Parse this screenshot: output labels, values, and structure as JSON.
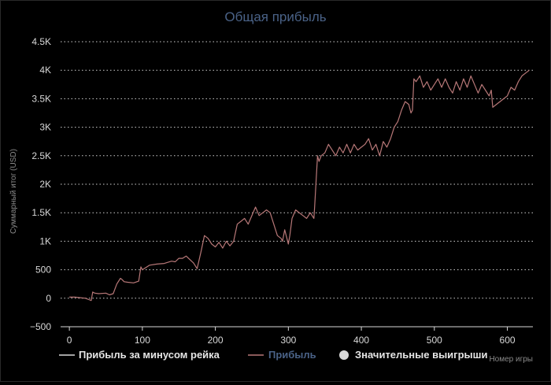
{
  "chart_data": {
    "type": "line",
    "title": "Общая прибыль",
    "xlabel": "Номер игры",
    "ylabel": "Суммарный итог (USD)",
    "xlim": [
      -12,
      635
    ],
    "ylim": [
      -500,
      4500
    ],
    "x_ticks": [
      0,
      100,
      200,
      300,
      400,
      500,
      600
    ],
    "x_tick_labels": [
      "0",
      "100",
      "200",
      "300",
      "400",
      "500",
      "600"
    ],
    "y_ticks": [
      -500,
      0,
      500,
      1000,
      1500,
      2000,
      2500,
      3000,
      3500,
      4000,
      4500
    ],
    "y_tick_labels": [
      "−500",
      "0",
      "500",
      "1K",
      "1.5K",
      "2K",
      "2.5K",
      "3K",
      "3.5K",
      "4K",
      "4.5K"
    ],
    "grid": "horizontal-dotted",
    "legend_position": "bottom",
    "legend": [
      {
        "label": "Прибыль за минусом рейка",
        "color": "#d8d8d8",
        "kind": "line"
      },
      {
        "label": "Прибыль",
        "color": "#b87878",
        "kind": "line"
      },
      {
        "label": "Значительные выигрыши",
        "color": "#d8d8d8",
        "kind": "marker"
      }
    ],
    "series": [
      {
        "name": "Прибыль",
        "color": "#b87878",
        "x": [
          0,
          8,
          15,
          22,
          28,
          30,
          32,
          33,
          35,
          40,
          50,
          55,
          60,
          65,
          70,
          72,
          75,
          80,
          88,
          95,
          98,
          100,
          110,
          120,
          130,
          140,
          145,
          150,
          155,
          160,
          165,
          170,
          175,
          180,
          185,
          190,
          195,
          200,
          205,
          210,
          215,
          220,
          225,
          230,
          235,
          240,
          245,
          250,
          255,
          260,
          265,
          270,
          275,
          280,
          285,
          290,
          292,
          295,
          298,
          300,
          302,
          305,
          310,
          315,
          320,
          325,
          330,
          335,
          336,
          340,
          342,
          345,
          350,
          355,
          360,
          365,
          370,
          375,
          380,
          385,
          390,
          395,
          400,
          405,
          410,
          415,
          420,
          425,
          430,
          435,
          440,
          445,
          450,
          455,
          460,
          465,
          468,
          470,
          472,
          475,
          480,
          485,
          490,
          495,
          500,
          505,
          510,
          515,
          520,
          525,
          530,
          535,
          540,
          545,
          550,
          555,
          560,
          565,
          570,
          575,
          578,
          580,
          585,
          590,
          595,
          600,
          605,
          610,
          615,
          620,
          625,
          630
        ],
        "y": [
          20,
          20,
          10,
          0,
          -30,
          -40,
          110,
          100,
          90,
          80,
          90,
          60,
          80,
          250,
          350,
          330,
          290,
          280,
          270,
          300,
          550,
          500,
          580,
          600,
          610,
          650,
          640,
          700,
          700,
          740,
          680,
          620,
          520,
          800,
          1100,
          1050,
          950,
          900,
          980,
          880,
          1000,
          920,
          1000,
          1300,
          1350,
          1400,
          1300,
          1450,
          1600,
          1450,
          1500,
          1550,
          1500,
          1300,
          1100,
          1050,
          1000,
          1200,
          1050,
          950,
          1100,
          1400,
          1550,
          1500,
          1450,
          1400,
          1500,
          1400,
          1600,
          2500,
          2400,
          2500,
          2550,
          2700,
          2600,
          2500,
          2650,
          2550,
          2700,
          2550,
          2700,
          2600,
          2650,
          2700,
          2800,
          2600,
          2700,
          2500,
          2750,
          2650,
          2800,
          3000,
          3100,
          3300,
          3450,
          3400,
          3250,
          3300,
          3850,
          3800,
          3900,
          3700,
          3800,
          3650,
          3750,
          3850,
          3700,
          3850,
          3700,
          3600,
          3800,
          3650,
          3850,
          3700,
          3900,
          3750,
          3600,
          3750,
          3650,
          3550,
          3650,
          3350,
          3400,
          3450,
          3500,
          3550,
          3700,
          3650,
          3800,
          3900,
          3950,
          4000
        ]
      }
    ]
  }
}
